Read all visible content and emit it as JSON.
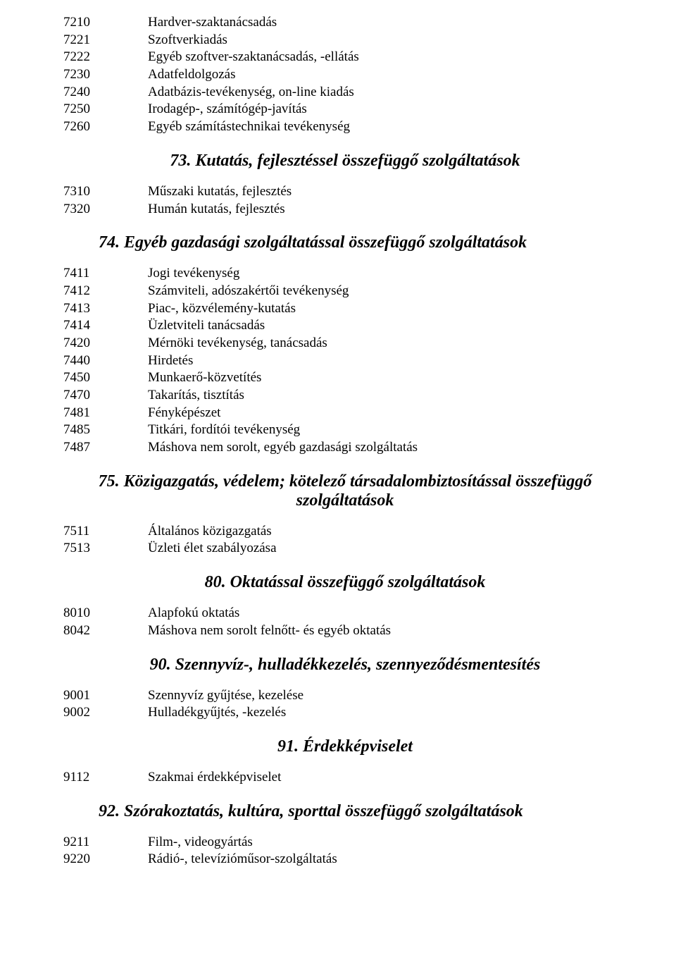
{
  "section1": {
    "rows": [
      {
        "code": "7210",
        "desc": "Hardver-szaktanácsadás"
      },
      {
        "code": "7221",
        "desc": "Szoftverkiadás"
      },
      {
        "code": "7222",
        "desc": "Egyéb szoftver-szaktanácsadás, -ellátás"
      },
      {
        "code": "7230",
        "desc": "Adatfeldolgozás"
      },
      {
        "code": "7240",
        "desc": "Adatbázis-tevékenység, on-line kiadás"
      },
      {
        "code": "7250",
        "desc": "Irodagép-, számítógép-javítás"
      },
      {
        "code": "7260",
        "desc": "Egyéb számítástechnikai tevékenység"
      }
    ]
  },
  "heading73": "73. Kutatás, fejlesztéssel összefüggő szolgáltatások",
  "section73": {
    "rows": [
      {
        "code": "7310",
        "desc": "Műszaki kutatás, fejlesztés"
      },
      {
        "code": "7320",
        "desc": "Humán kutatás, fejlesztés"
      }
    ]
  },
  "heading74": "74. Egyéb gazdasági szolgáltatással összefüggő szolgáltatások",
  "section74": {
    "rows": [
      {
        "code": "7411",
        "desc": "Jogi tevékenység"
      },
      {
        "code": "7412",
        "desc": "Számviteli, adószakértői tevékenység"
      },
      {
        "code": "7413",
        "desc": "Piac-, közvélemény-kutatás"
      },
      {
        "code": "7414",
        "desc": "Üzletviteli tanácsadás"
      },
      {
        "code": "7420",
        "desc": "Mérnöki tevékenység, tanácsadás"
      },
      {
        "code": "7440",
        "desc": "Hirdetés"
      },
      {
        "code": "7450",
        "desc": "Munkaerő-közvetítés"
      },
      {
        "code": "7470",
        "desc": "Takarítás, tisztítás"
      },
      {
        "code": "7481",
        "desc": "Fényképészet"
      },
      {
        "code": "7485",
        "desc": "Titkári, fordítói tevékenység"
      },
      {
        "code": "7487",
        "desc": "Máshova nem sorolt, egyéb gazdasági szolgáltatás"
      }
    ]
  },
  "heading75": "75. Közigazgatás, védelem; kötelező társadalombiztosítással összefüggő szolgáltatások",
  "section75": {
    "rows": [
      {
        "code": "7511",
        "desc": "Általános közigazgatás"
      },
      {
        "code": "7513",
        "desc": "Üzleti élet szabályozása"
      }
    ]
  },
  "heading80": "80. Oktatással összefüggő szolgáltatások",
  "section80": {
    "rows": [
      {
        "code": "8010",
        "desc": "Alapfokú oktatás"
      },
      {
        "code": "8042",
        "desc": "Máshova nem sorolt felnőtt- és egyéb oktatás"
      }
    ]
  },
  "heading90": "90. Szennyvíz-, hulladékkezelés, szennyeződésmentesítés",
  "section90": {
    "rows": [
      {
        "code": "9001",
        "desc": "Szennyvíz gyűjtése, kezelése"
      },
      {
        "code": "9002",
        "desc": "Hulladékgyűjtés, -kezelés"
      }
    ]
  },
  "heading91": "91. Érdekképviselet",
  "section91": {
    "rows": [
      {
        "code": "9112",
        "desc": "Szakmai érdekképviselet"
      }
    ]
  },
  "heading92": "92. Szórakoztatás, kultúra, sporttal összefüggő szolgáltatások",
  "section92": {
    "rows": [
      {
        "code": "9211",
        "desc": "Film-, videogyártás"
      },
      {
        "code": "9220",
        "desc": "Rádió-, televízióműsor-szolgáltatás"
      }
    ]
  }
}
